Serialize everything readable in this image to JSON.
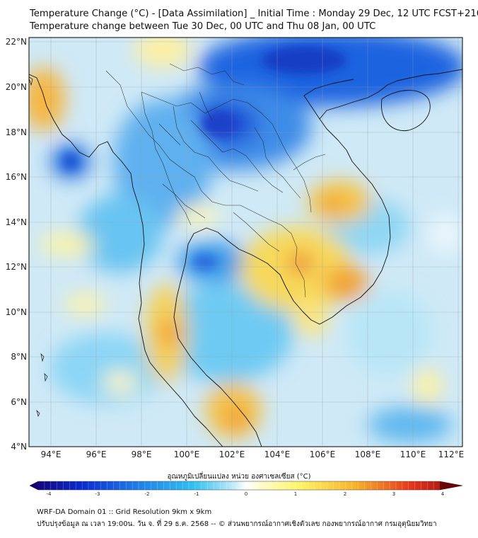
{
  "header": {
    "title_line1": "Temperature Change (°C) - [Data Assimilation] _ Initial Time : Monday 29 Dec, 12 UTC FCST+216",
    "title_line2": "Temperature change between Tue 30 Dec, 00 UTC and Thu 08 Jan, 00 UTC"
  },
  "map": {
    "lat_labels": [
      "22°N",
      "20°N",
      "18°N",
      "16°N",
      "14°N",
      "12°N",
      "10°N",
      "8°N",
      "6°N",
      "4°N"
    ],
    "lon_labels": [
      "94°E",
      "96°E",
      "98°E",
      "100°E",
      "102°E",
      "104°E",
      "106°E",
      "108°E",
      "110°E",
      "112°E"
    ],
    "lat_range": [
      4,
      22.3
    ],
    "lon_range": [
      93,
      112.3
    ],
    "gridlines": true,
    "colors": {
      "land_base": "#a8d8f0",
      "ocean_base": "#c9e6f5",
      "coastline": "#111111",
      "border": "#222222"
    }
  },
  "colorbar": {
    "title": "อุณหภูมิเปลี่ยนแปลง หน่วย องศาเซลเซียส (°C)",
    "ticks": [
      "-4",
      "-3",
      "-2",
      "-1",
      "0",
      "1",
      "2",
      "3",
      "4"
    ],
    "range": [
      -4,
      4
    ],
    "colors": [
      "#14006e",
      "#0a2bd0",
      "#1f7fe8",
      "#31c2f2",
      "#ffffff",
      "#fff56a",
      "#f7b52a",
      "#e6361c",
      "#8c0a0a"
    ]
  },
  "footer": {
    "line1": "WRF-DA Domain 01 :: Grid Resolution 9km x 9km",
    "line2": "ปรับปรุงข้อมูล ณ เวลา 19:00น. วัน จ. ที่ 29 ธ.ค. 2568 -- © ส่วนพยากรณ์อากาศเชิงตัวเลข กองพยากรณ์อากาศ กรมอุตุนิยมวิทยา"
  }
}
